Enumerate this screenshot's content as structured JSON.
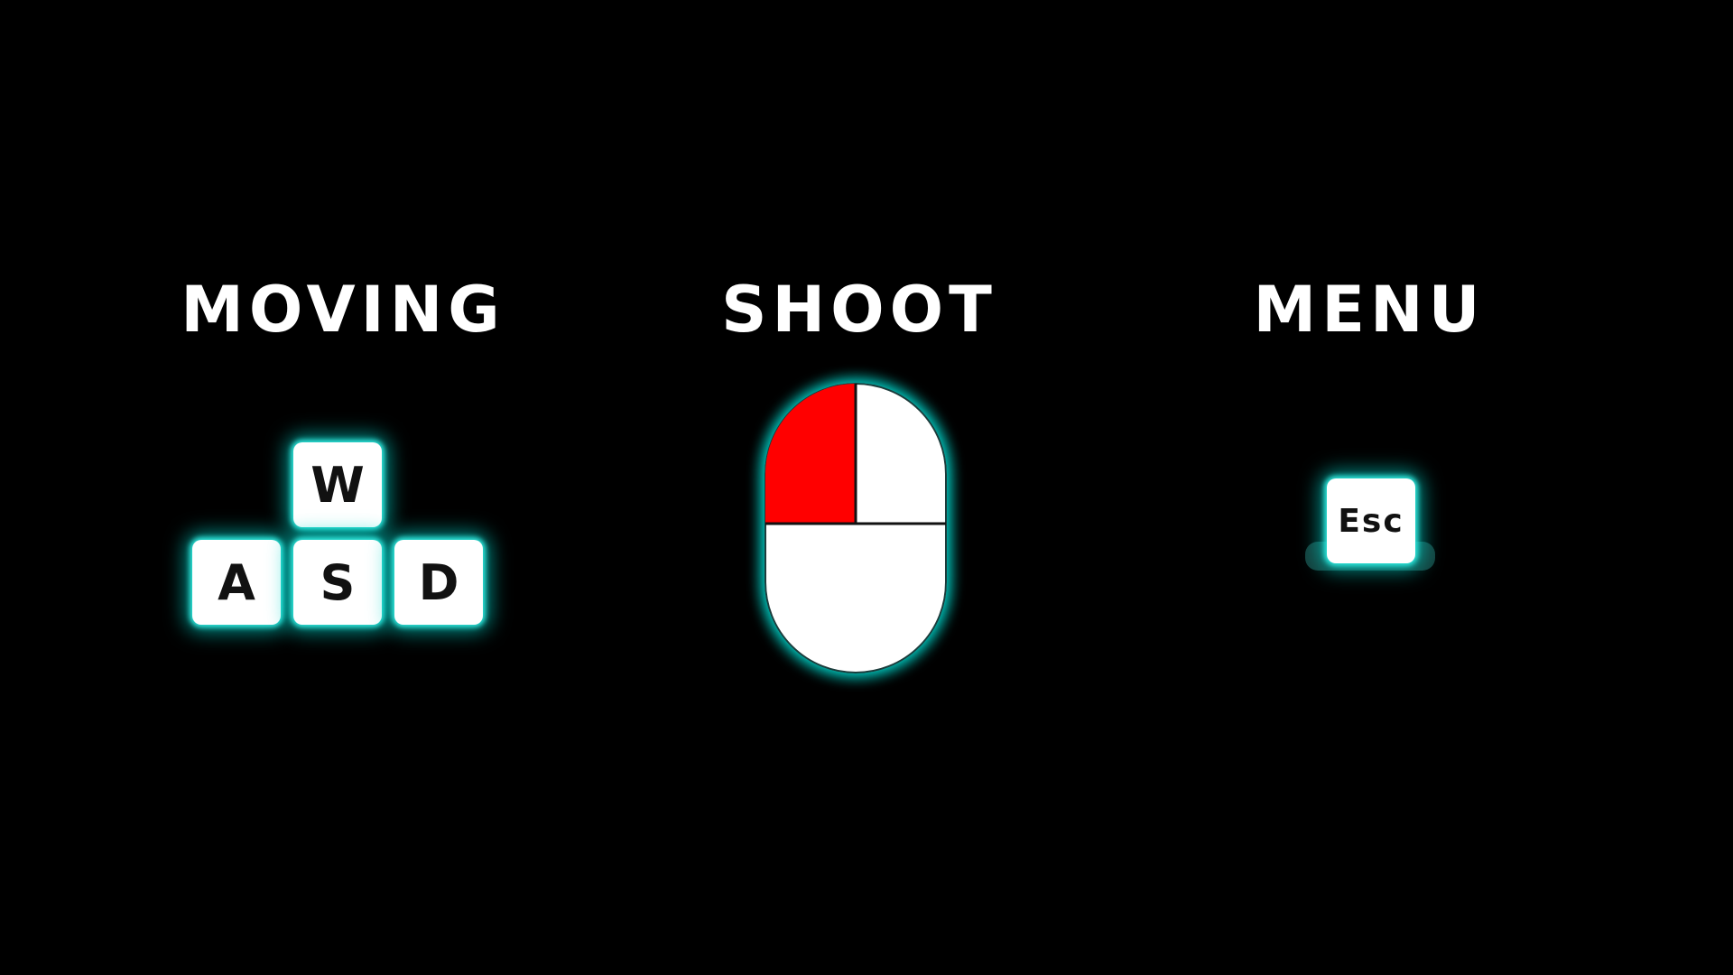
{
  "sections": {
    "moving": {
      "title": "MOVING",
      "keys": [
        "W",
        "A",
        "S",
        "D"
      ]
    },
    "shoot": {
      "title": "SHOOT",
      "device": "mouse-icon",
      "highlighted_button": "left"
    },
    "menu": {
      "title": "MENU",
      "key": "Esc"
    }
  },
  "colors": {
    "background": "#000000",
    "text": "#ffffff",
    "key_face": "#ffffff",
    "key_text": "#111111",
    "glow": "#00d7cd",
    "mouse_highlight": "#ff0000"
  }
}
